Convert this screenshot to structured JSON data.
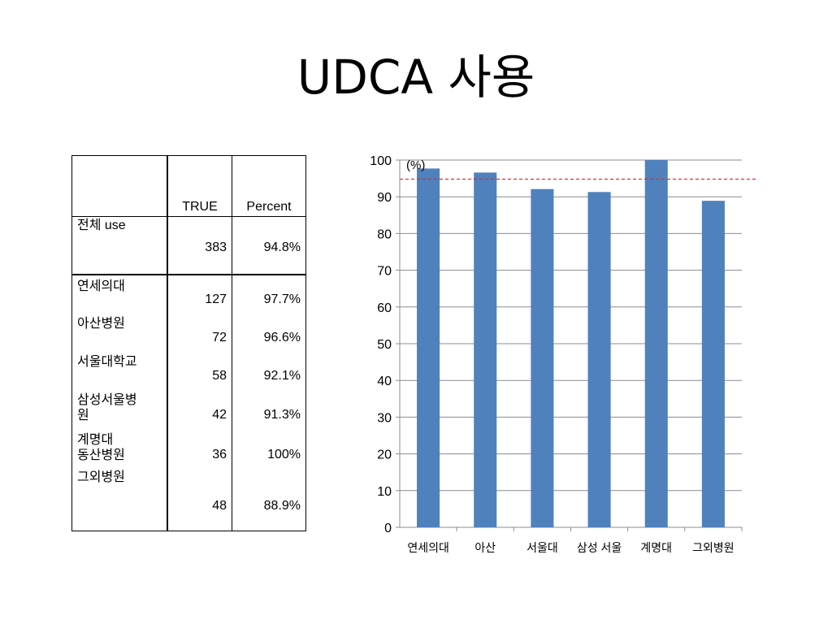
{
  "title": "UDCA 사용",
  "table": {
    "headers": [
      "",
      "TRUE",
      "Percent"
    ],
    "total": {
      "label": "전체 use",
      "true": "383",
      "percent": "94.8%"
    },
    "hospitals": [
      {
        "label": "연세의대",
        "true": "127",
        "percent": "97.7%"
      },
      {
        "label": "아산병원",
        "true": "72",
        "percent": "96.6%"
      },
      {
        "label": "서울대학교",
        "true": "58",
        "percent": "92.1%"
      },
      {
        "label": "삼성서울병\n원",
        "true": "42",
        "percent": "91.3%"
      },
      {
        "label": "계명대\n동산병원",
        "true": "36",
        "percent": "100%"
      },
      {
        "label": "그외병원",
        "true": "48",
        "percent": "88.9%"
      }
    ]
  },
  "chart_data": {
    "type": "bar",
    "categories": [
      "연세의대",
      "아산",
      "서울대",
      "삼성 서울",
      "계명대",
      "그외병원"
    ],
    "values": [
      97.7,
      96.6,
      92.1,
      91.3,
      100,
      88.9
    ],
    "reference_line": 94.8,
    "ylim": [
      0,
      100
    ],
    "yticks": [
      0,
      10,
      20,
      30,
      40,
      50,
      60,
      70,
      80,
      90,
      100
    ],
    "unit_label": "(%)",
    "grid": true,
    "bar_color": "#4F81BD",
    "reference_line_color": "#E03030"
  }
}
